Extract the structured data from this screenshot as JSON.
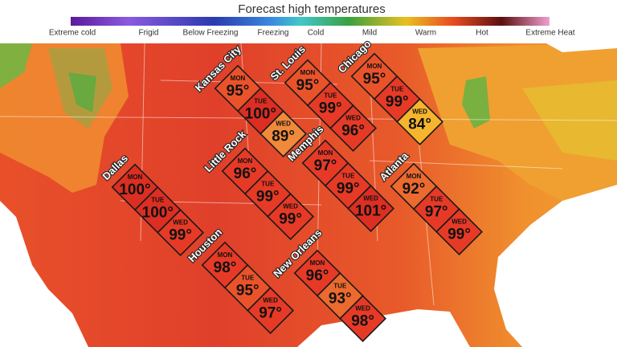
{
  "header": {
    "title": "Forecast high temperatures",
    "legend": [
      "Extreme cold",
      "Frigid",
      "Below Freezing",
      "Freezing",
      "Cold",
      "Mild",
      "Warm",
      "Hot",
      "Extreme Heat"
    ]
  },
  "cities": [
    {
      "name": "Kansas City",
      "days": [
        {
          "day": "MON",
          "temp": "95°"
        },
        {
          "day": "TUE",
          "temp": "100°"
        },
        {
          "day": "WED",
          "temp": "89°"
        }
      ]
    },
    {
      "name": "St. Louis",
      "days": [
        {
          "day": "MON",
          "temp": "95°"
        },
        {
          "day": "TUE",
          "temp": "99°"
        },
        {
          "day": "WED",
          "temp": "96°"
        }
      ]
    },
    {
      "name": "Chicago",
      "days": [
        {
          "day": "MON",
          "temp": "95°"
        },
        {
          "day": "TUE",
          "temp": "99°"
        },
        {
          "day": "WED",
          "temp": "84°"
        }
      ]
    },
    {
      "name": "Dallas",
      "days": [
        {
          "day": "MON",
          "temp": "100°"
        },
        {
          "day": "TUE",
          "temp": "100°"
        },
        {
          "day": "WED",
          "temp": "99°"
        }
      ]
    },
    {
      "name": "Little Rock",
      "days": [
        {
          "day": "MON",
          "temp": "96°"
        },
        {
          "day": "TUE",
          "temp": "99°"
        },
        {
          "day": "WED",
          "temp": "99°"
        }
      ]
    },
    {
      "name": "Memphis",
      "days": [
        {
          "day": "MON",
          "temp": "97°"
        },
        {
          "day": "TUE",
          "temp": "99°"
        },
        {
          "day": "WED",
          "temp": "101°"
        }
      ]
    },
    {
      "name": "Atlanta",
      "days": [
        {
          "day": "MON",
          "temp": "92°"
        },
        {
          "day": "TUE",
          "temp": "97°"
        },
        {
          "day": "WED",
          "temp": "99°"
        }
      ]
    },
    {
      "name": "Houston",
      "days": [
        {
          "day": "MON",
          "temp": "98°"
        },
        {
          "day": "TUE",
          "temp": "95°"
        },
        {
          "day": "WED",
          "temp": "97°"
        }
      ]
    },
    {
      "name": "New Orleans",
      "days": [
        {
          "day": "MON",
          "temp": "96°"
        },
        {
          "day": "TUE",
          "temp": "93°"
        },
        {
          "day": "WED",
          "temp": "98°"
        }
      ]
    }
  ]
}
